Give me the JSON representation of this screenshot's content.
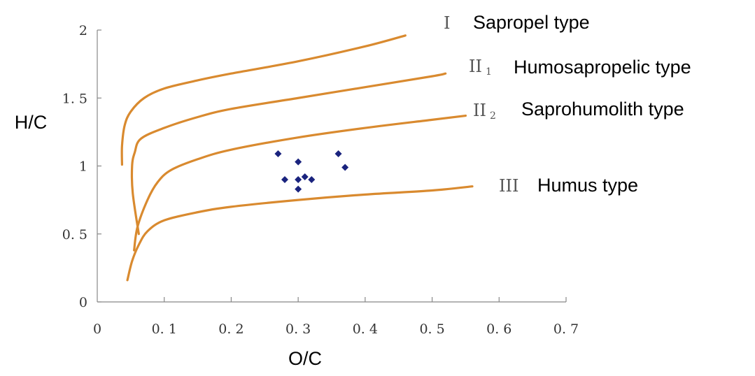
{
  "chart_data": {
    "type": "line",
    "title": "",
    "xlabel": "O/C",
    "ylabel": "H/C",
    "xlim": [
      0,
      0.7
    ],
    "ylim": [
      0,
      2
    ],
    "x_ticks": [
      0,
      0.1,
      0.2,
      0.3,
      0.4,
      0.5,
      0.6,
      0.7
    ],
    "x_tick_labels": [
      "0",
      "0. 1",
      "0. 2",
      "0. 3",
      "0. 4",
      "0. 5",
      "0. 6",
      "0. 7"
    ],
    "y_ticks": [
      0,
      0.5,
      1,
      1.5,
      2
    ],
    "y_tick_labels": [
      "0",
      "0. 5",
      "1",
      "1. 5",
      "2"
    ],
    "grid": false,
    "curve_color": "#d98a2f",
    "point_color": "#1a237e",
    "boundary_curves": [
      {
        "roman": "I",
        "subscript": "",
        "name": "Sapropel type",
        "points": [
          [
            0.037,
            1.01
          ],
          [
            0.037,
            1.15
          ],
          [
            0.041,
            1.3
          ],
          [
            0.05,
            1.4
          ],
          [
            0.07,
            1.5
          ],
          [
            0.1,
            1.57
          ],
          [
            0.15,
            1.63
          ],
          [
            0.2,
            1.68
          ],
          [
            0.3,
            1.77
          ],
          [
            0.4,
            1.88
          ],
          [
            0.46,
            1.96
          ]
        ]
      },
      {
        "roman": "II",
        "subscript": "1",
        "name": "Humosapropelic type",
        "points": [
          [
            0.062,
            0.5
          ],
          [
            0.053,
            0.8
          ],
          [
            0.052,
            1.0
          ],
          [
            0.056,
            1.1
          ],
          [
            0.065,
            1.2
          ],
          [
            0.1,
            1.28
          ],
          [
            0.15,
            1.36
          ],
          [
            0.2,
            1.42
          ],
          [
            0.3,
            1.5
          ],
          [
            0.4,
            1.58
          ],
          [
            0.5,
            1.66
          ],
          [
            0.52,
            1.68
          ]
        ]
      },
      {
        "roman": "II",
        "subscript": "2",
        "name": "Saprohumolith type",
        "points": [
          [
            0.055,
            0.38
          ],
          [
            0.06,
            0.55
          ],
          [
            0.075,
            0.75
          ],
          [
            0.09,
            0.88
          ],
          [
            0.11,
            0.97
          ],
          [
            0.15,
            1.05
          ],
          [
            0.2,
            1.12
          ],
          [
            0.3,
            1.21
          ],
          [
            0.4,
            1.28
          ],
          [
            0.5,
            1.34
          ],
          [
            0.55,
            1.37
          ]
        ]
      },
      {
        "roman": "III",
        "subscript": "",
        "name": "Humus type",
        "points": [
          [
            0.045,
            0.16
          ],
          [
            0.052,
            0.3
          ],
          [
            0.062,
            0.42
          ],
          [
            0.075,
            0.52
          ],
          [
            0.1,
            0.6
          ],
          [
            0.15,
            0.66
          ],
          [
            0.2,
            0.7
          ],
          [
            0.3,
            0.75
          ],
          [
            0.4,
            0.79
          ],
          [
            0.5,
            0.82
          ],
          [
            0.56,
            0.85
          ]
        ]
      }
    ],
    "series": [
      {
        "type": "scatter",
        "points": [
          [
            0.27,
            1.09
          ],
          [
            0.28,
            0.9
          ],
          [
            0.3,
            1.03
          ],
          [
            0.3,
            0.9
          ],
          [
            0.3,
            0.83
          ],
          [
            0.31,
            0.92
          ],
          [
            0.32,
            0.9
          ],
          [
            0.36,
            1.09
          ],
          [
            0.37,
            0.99
          ]
        ]
      }
    ]
  }
}
